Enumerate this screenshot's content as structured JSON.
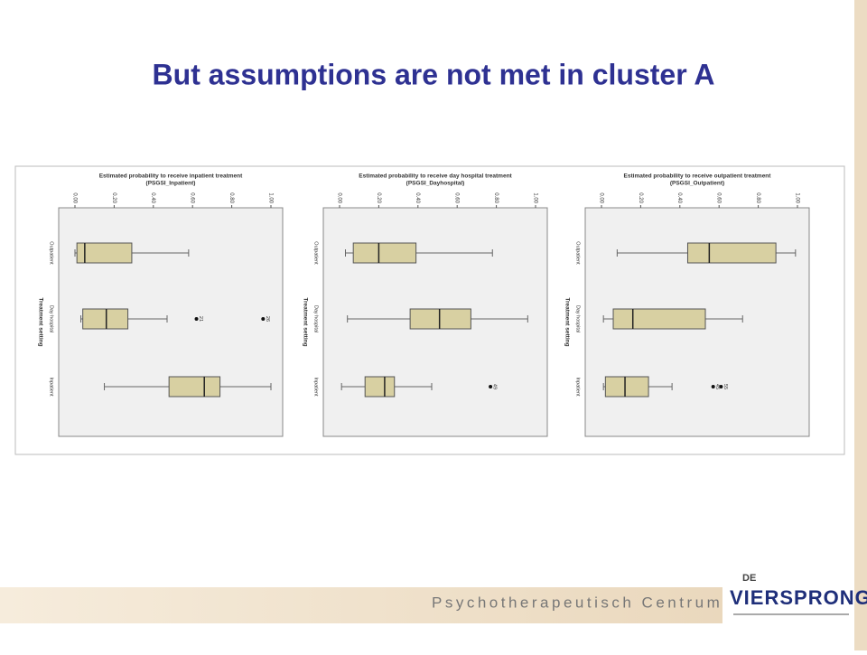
{
  "title": "But assumptions are not met in cluster A",
  "footer": {
    "text": "Psychotherapeutisch Centrum",
    "logo_small": "DE",
    "logo_large": "VIERSPRONG"
  },
  "chart_data": [
    {
      "type": "boxplot",
      "title": "Estimated probability to receive inpatient treatment",
      "subtitle": "(PSGSI_Inpatient)",
      "y_label": "Treatment setting",
      "categories": [
        "Outpatient",
        "Day hospital",
        "Inpatient"
      ],
      "xlim": [
        0,
        1
      ],
      "xticks": [
        {
          "value": 0,
          "label": "0.00"
        },
        {
          "value": 0.2,
          "label": "0.20"
        },
        {
          "value": 0.4,
          "label": "0.40"
        },
        {
          "value": 0.6,
          "label": "0.60"
        },
        {
          "value": 0.8,
          "label": "0.80"
        },
        {
          "value": 1,
          "label": "1.00"
        }
      ],
      "color": "#d8d0a2",
      "boxes": [
        {
          "min": 0.0,
          "q1": 0.01,
          "median": 0.05,
          "q3": 0.29,
          "max": 0.58,
          "outliers": []
        },
        {
          "min": 0.03,
          "q1": 0.04,
          "median": 0.16,
          "q3": 0.27,
          "max": 0.47,
          "outliers": [
            {
              "value": 0.62,
              "label": "21"
            },
            {
              "value": 0.96,
              "label": "26"
            }
          ]
        },
        {
          "min": 0.15,
          "q1": 0.48,
          "median": 0.66,
          "q3": 0.74,
          "max": 1.0,
          "outliers": []
        }
      ]
    },
    {
      "type": "boxplot",
      "title": "Estimated probability to receive day hospital treatment",
      "subtitle": "(PSGSI_Dayhospital)",
      "y_label": "Treatment setting",
      "categories": [
        "Outpatient",
        "Day hospital",
        "Inpatient"
      ],
      "xlim": [
        0,
        1
      ],
      "xticks": [
        {
          "value": 0,
          "label": "0.00"
        },
        {
          "value": 0.2,
          "label": "0.20"
        },
        {
          "value": 0.4,
          "label": "0.40"
        },
        {
          "value": 0.6,
          "label": "0.60"
        },
        {
          "value": 0.8,
          "label": "0.80"
        },
        {
          "value": 1,
          "label": "1.00"
        }
      ],
      "color": "#d8d0a2",
      "boxes": [
        {
          "min": 0.03,
          "q1": 0.07,
          "median": 0.2,
          "q3": 0.39,
          "max": 0.78,
          "outliers": []
        },
        {
          "min": 0.04,
          "q1": 0.36,
          "median": 0.51,
          "q3": 0.67,
          "max": 0.96,
          "outliers": []
        },
        {
          "min": 0.01,
          "q1": 0.13,
          "median": 0.23,
          "q3": 0.28,
          "max": 0.47,
          "outliers": [
            {
              "value": 0.77,
              "label": "49"
            }
          ]
        }
      ]
    },
    {
      "type": "boxplot",
      "title": "Estimated probability to receive outpatient treatment",
      "subtitle": "(PSGSI_Outpatient)",
      "y_label": "Treatment setting",
      "categories": [
        "Outpatient",
        "Day hospital",
        "Inpatient"
      ],
      "xlim": [
        0,
        1
      ],
      "xticks": [
        {
          "value": 0,
          "label": "0.00"
        },
        {
          "value": 0.2,
          "label": "0.20"
        },
        {
          "value": 0.4,
          "label": "0.40"
        },
        {
          "value": 0.6,
          "label": "0.60"
        },
        {
          "value": 0.8,
          "label": "0.80"
        },
        {
          "value": 1,
          "label": "1.00"
        }
      ],
      "color": "#d8d0a2",
      "boxes": [
        {
          "min": 0.08,
          "q1": 0.44,
          "median": 0.55,
          "q3": 0.89,
          "max": 0.99,
          "outliers": []
        },
        {
          "min": 0.01,
          "q1": 0.06,
          "median": 0.16,
          "q3": 0.53,
          "max": 0.72,
          "outliers": []
        },
        {
          "min": 0.01,
          "q1": 0.02,
          "median": 0.12,
          "q3": 0.24,
          "max": 0.36,
          "outliers": [
            {
              "value": 0.57,
              "label": "45"
            },
            {
              "value": 0.61,
              "label": "55"
            }
          ]
        }
      ]
    }
  ]
}
